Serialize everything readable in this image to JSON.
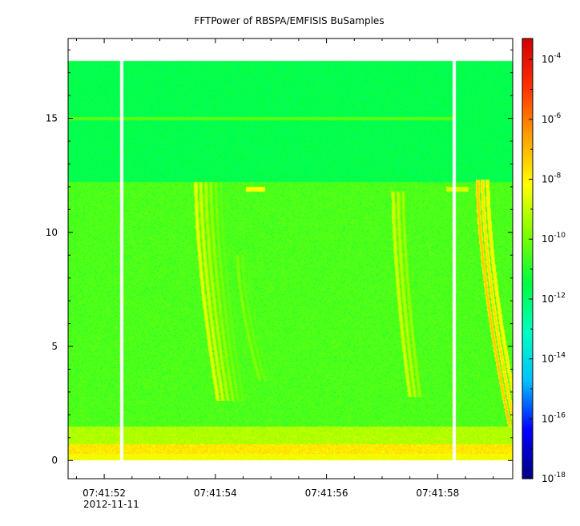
{
  "chart_data": {
    "type": "heatmap",
    "title": "FFTPower of RBSPA/EMFISIS  BuSamples",
    "xlabel": "",
    "ylabel": "",
    "x_ticks": [
      {
        "t": 0.0,
        "label": "07:41:52"
      },
      {
        "t": 2.0,
        "label": "07:41:54"
      },
      {
        "t": 4.0,
        "label": "07:41:56"
      },
      {
        "t": 6.0,
        "label": "07:41:58"
      }
    ],
    "x_date_label": "2012-11-11",
    "x_range_seconds": [
      -0.65,
      7.35
    ],
    "y_range": [
      -0.8,
      18.5
    ],
    "y_ticks": [
      0,
      5,
      10,
      15
    ],
    "data_y_range": [
      0,
      17.5
    ],
    "colorbar": {
      "scale": "log",
      "range_exp": [
        -18,
        -3.3
      ],
      "tick_exponents": [
        -4,
        -6,
        -8,
        -10,
        -12,
        -14,
        -16,
        -18
      ],
      "tick_base": "10",
      "colormap": [
        "#000080",
        "#0000ff",
        "#00c0ff",
        "#00ffc0",
        "#00ff40",
        "#80ff00",
        "#ffff00",
        "#ffa000",
        "#ff3000",
        "#d00000"
      ]
    },
    "data_gaps_seconds": [
      0.32,
      6.3
    ],
    "features": {
      "band_log10_power": [
        {
          "f_min": 0.0,
          "f_max": 0.3,
          "value": -8.3
        },
        {
          "f_min": 0.3,
          "f_max": 0.7,
          "value": -7.8
        },
        {
          "f_min": 0.7,
          "f_max": 1.5,
          "value": -9.2
        },
        {
          "f_min": 1.5,
          "f_max": 12.2,
          "value": -10.5
        },
        {
          "f_min": 12.2,
          "f_max": 17.5,
          "value": -11.6
        }
      ],
      "line_15hz": {
        "f": 15.0,
        "t_max_seconds": 6.3,
        "value": -10.3
      },
      "bursts_at_12hz": [
        {
          "t_start": 2.55,
          "t_end": 2.9,
          "f": 11.9,
          "value": -8.2
        },
        {
          "t_start": 6.15,
          "t_end": 6.55,
          "f": 11.9,
          "value": -8.7
        }
      ],
      "chorus_elements": [
        {
          "t_top": 1.65,
          "t_bottom": 2.05,
          "f_top": 12.2,
          "f_bottom": 2.6,
          "peak": -8.0,
          "count": 6
        },
        {
          "t_top": 2.4,
          "t_bottom": 2.8,
          "f_top": 9.0,
          "f_bottom": 3.5,
          "peak": -9.3,
          "count": 3
        },
        {
          "t_top": 5.2,
          "t_bottom": 5.5,
          "f_top": 11.8,
          "f_bottom": 2.8,
          "peak": -8.3,
          "count": 3
        },
        {
          "t_top": 6.72,
          "t_bottom": 7.3,
          "f_top": 12.3,
          "f_bottom": 1.5,
          "peak": -6.9,
          "count": 3
        }
      ]
    }
  }
}
